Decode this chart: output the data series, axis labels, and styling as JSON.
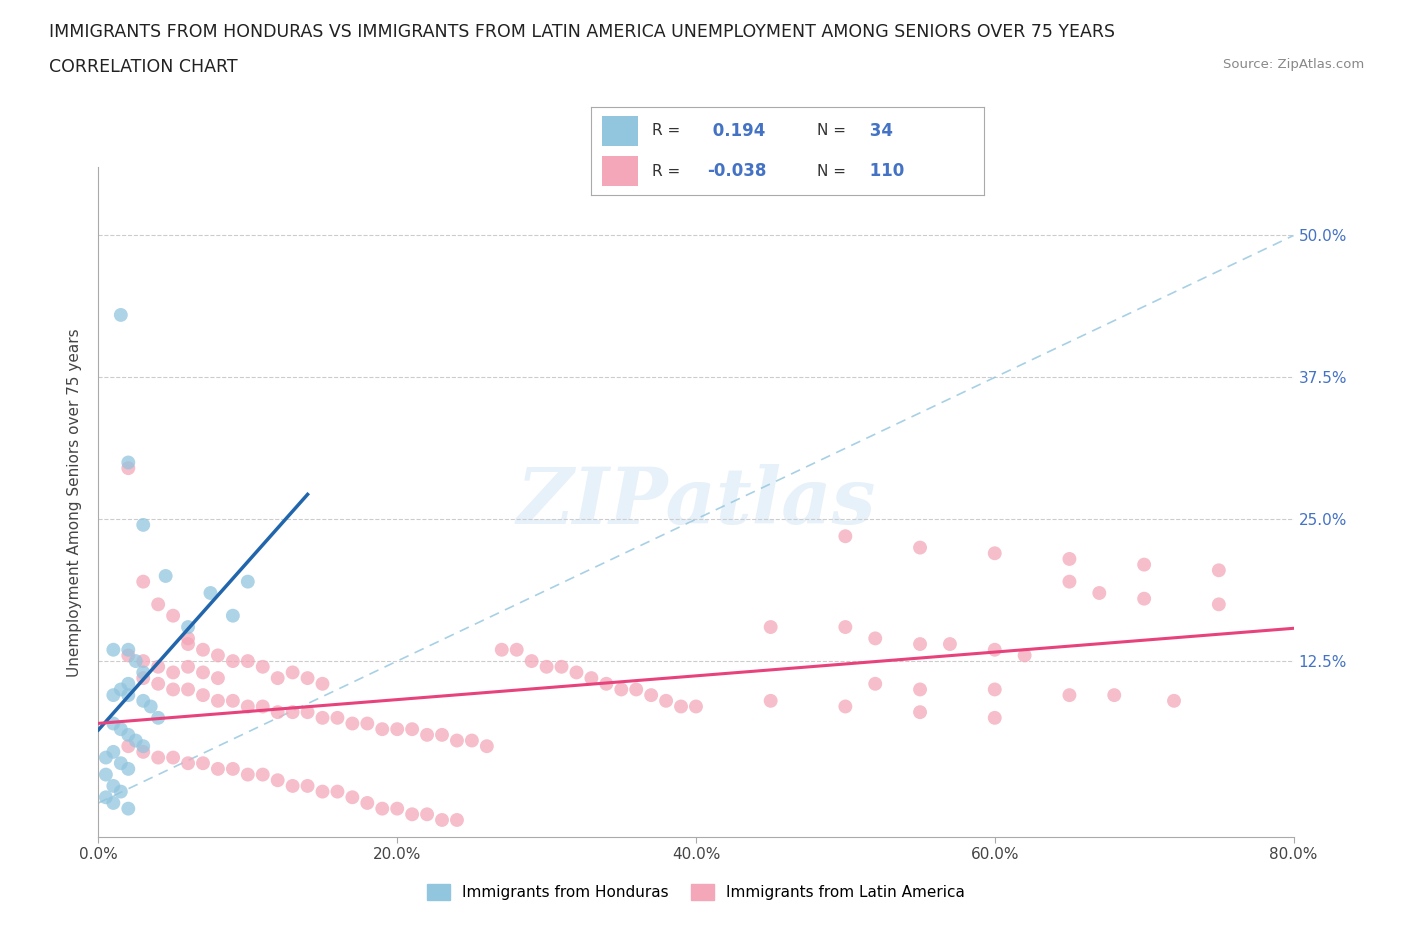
{
  "title_line1": "IMMIGRANTS FROM HONDURAS VS IMMIGRANTS FROM LATIN AMERICA UNEMPLOYMENT AMONG SENIORS OVER 75 YEARS",
  "title_line2": "CORRELATION CHART",
  "source": "Source: ZipAtlas.com",
  "ylabel_label": "Unemployment Among Seniors over 75 years",
  "xlim": [
    0.0,
    0.8
  ],
  "ylim": [
    -0.03,
    0.56
  ],
  "xticks": [
    0.0,
    0.2,
    0.4,
    0.6,
    0.8
  ],
  "xticklabels": [
    "0.0%",
    "20.0%",
    "40.0%",
    "60.0%",
    "80.0%"
  ],
  "yticks": [
    0.0,
    0.125,
    0.25,
    0.375,
    0.5
  ],
  "yticklabels": [
    "",
    "12.5%",
    "25.0%",
    "37.5%",
    "50.0%"
  ],
  "r_honduras": 0.194,
  "n_honduras": 34,
  "r_latin": -0.038,
  "n_latin": 110,
  "blue_color": "#92c5de",
  "pink_color": "#f4a7b9",
  "trendline_blue": "#2166ac",
  "trendline_pink": "#e8427c",
  "diag_color": "#92c5de",
  "grid_color": "#cccccc",
  "watermark_text": "ZIPatlas",
  "honduras_scatter": [
    [
      0.015,
      0.43
    ],
    [
      0.02,
      0.3
    ],
    [
      0.03,
      0.245
    ],
    [
      0.045,
      0.2
    ],
    [
      0.06,
      0.155
    ],
    [
      0.075,
      0.185
    ],
    [
      0.09,
      0.165
    ],
    [
      0.1,
      0.195
    ],
    [
      0.01,
      0.135
    ],
    [
      0.02,
      0.135
    ],
    [
      0.025,
      0.125
    ],
    [
      0.03,
      0.115
    ],
    [
      0.02,
      0.105
    ],
    [
      0.015,
      0.1
    ],
    [
      0.01,
      0.095
    ],
    [
      0.02,
      0.095
    ],
    [
      0.03,
      0.09
    ],
    [
      0.035,
      0.085
    ],
    [
      0.04,
      0.075
    ],
    [
      0.01,
      0.07
    ],
    [
      0.015,
      0.065
    ],
    [
      0.02,
      0.06
    ],
    [
      0.025,
      0.055
    ],
    [
      0.03,
      0.05
    ],
    [
      0.01,
      0.045
    ],
    [
      0.005,
      0.04
    ],
    [
      0.015,
      0.035
    ],
    [
      0.02,
      0.03
    ],
    [
      0.005,
      0.025
    ],
    [
      0.01,
      0.015
    ],
    [
      0.015,
      0.01
    ],
    [
      0.005,
      0.005
    ],
    [
      0.01,
      0.0
    ],
    [
      0.02,
      -0.005
    ]
  ],
  "latin_scatter": [
    [
      0.02,
      0.295
    ],
    [
      0.03,
      0.195
    ],
    [
      0.04,
      0.175
    ],
    [
      0.05,
      0.165
    ],
    [
      0.06,
      0.145
    ],
    [
      0.06,
      0.14
    ],
    [
      0.07,
      0.135
    ],
    [
      0.08,
      0.13
    ],
    [
      0.09,
      0.125
    ],
    [
      0.1,
      0.125
    ],
    [
      0.11,
      0.12
    ],
    [
      0.12,
      0.11
    ],
    [
      0.13,
      0.115
    ],
    [
      0.14,
      0.11
    ],
    [
      0.15,
      0.105
    ],
    [
      0.02,
      0.13
    ],
    [
      0.03,
      0.125
    ],
    [
      0.04,
      0.12
    ],
    [
      0.05,
      0.115
    ],
    [
      0.06,
      0.12
    ],
    [
      0.07,
      0.115
    ],
    [
      0.08,
      0.11
    ],
    [
      0.03,
      0.11
    ],
    [
      0.04,
      0.105
    ],
    [
      0.05,
      0.1
    ],
    [
      0.06,
      0.1
    ],
    [
      0.07,
      0.095
    ],
    [
      0.08,
      0.09
    ],
    [
      0.09,
      0.09
    ],
    [
      0.1,
      0.085
    ],
    [
      0.11,
      0.085
    ],
    [
      0.12,
      0.08
    ],
    [
      0.13,
      0.08
    ],
    [
      0.14,
      0.08
    ],
    [
      0.15,
      0.075
    ],
    [
      0.16,
      0.075
    ],
    [
      0.17,
      0.07
    ],
    [
      0.18,
      0.07
    ],
    [
      0.19,
      0.065
    ],
    [
      0.2,
      0.065
    ],
    [
      0.21,
      0.065
    ],
    [
      0.22,
      0.06
    ],
    [
      0.23,
      0.06
    ],
    [
      0.24,
      0.055
    ],
    [
      0.25,
      0.055
    ],
    [
      0.26,
      0.05
    ],
    [
      0.02,
      0.05
    ],
    [
      0.03,
      0.045
    ],
    [
      0.04,
      0.04
    ],
    [
      0.05,
      0.04
    ],
    [
      0.06,
      0.035
    ],
    [
      0.07,
      0.035
    ],
    [
      0.08,
      0.03
    ],
    [
      0.09,
      0.03
    ],
    [
      0.1,
      0.025
    ],
    [
      0.11,
      0.025
    ],
    [
      0.12,
      0.02
    ],
    [
      0.13,
      0.015
    ],
    [
      0.14,
      0.015
    ],
    [
      0.15,
      0.01
    ],
    [
      0.16,
      0.01
    ],
    [
      0.17,
      0.005
    ],
    [
      0.18,
      0.0
    ],
    [
      0.19,
      -0.005
    ],
    [
      0.2,
      -0.005
    ],
    [
      0.21,
      -0.01
    ],
    [
      0.22,
      -0.01
    ],
    [
      0.23,
      -0.015
    ],
    [
      0.24,
      -0.015
    ],
    [
      0.27,
      0.135
    ],
    [
      0.28,
      0.135
    ],
    [
      0.29,
      0.125
    ],
    [
      0.3,
      0.12
    ],
    [
      0.31,
      0.12
    ],
    [
      0.32,
      0.115
    ],
    [
      0.33,
      0.11
    ],
    [
      0.34,
      0.105
    ],
    [
      0.35,
      0.1
    ],
    [
      0.36,
      0.1
    ],
    [
      0.37,
      0.095
    ],
    [
      0.38,
      0.09
    ],
    [
      0.39,
      0.085
    ],
    [
      0.4,
      0.085
    ],
    [
      0.45,
      0.155
    ],
    [
      0.5,
      0.155
    ],
    [
      0.52,
      0.145
    ],
    [
      0.55,
      0.14
    ],
    [
      0.57,
      0.14
    ],
    [
      0.6,
      0.135
    ],
    [
      0.62,
      0.13
    ],
    [
      0.65,
      0.195
    ],
    [
      0.67,
      0.185
    ],
    [
      0.7,
      0.18
    ],
    [
      0.52,
      0.105
    ],
    [
      0.55,
      0.1
    ],
    [
      0.6,
      0.1
    ],
    [
      0.65,
      0.095
    ],
    [
      0.68,
      0.095
    ],
    [
      0.72,
      0.09
    ],
    [
      0.75,
      0.175
    ],
    [
      0.5,
      0.235
    ],
    [
      0.55,
      0.225
    ],
    [
      0.6,
      0.22
    ],
    [
      0.65,
      0.215
    ],
    [
      0.7,
      0.21
    ],
    [
      0.75,
      0.205
    ],
    [
      0.45,
      0.09
    ],
    [
      0.5,
      0.085
    ],
    [
      0.55,
      0.08
    ],
    [
      0.6,
      0.075
    ]
  ]
}
